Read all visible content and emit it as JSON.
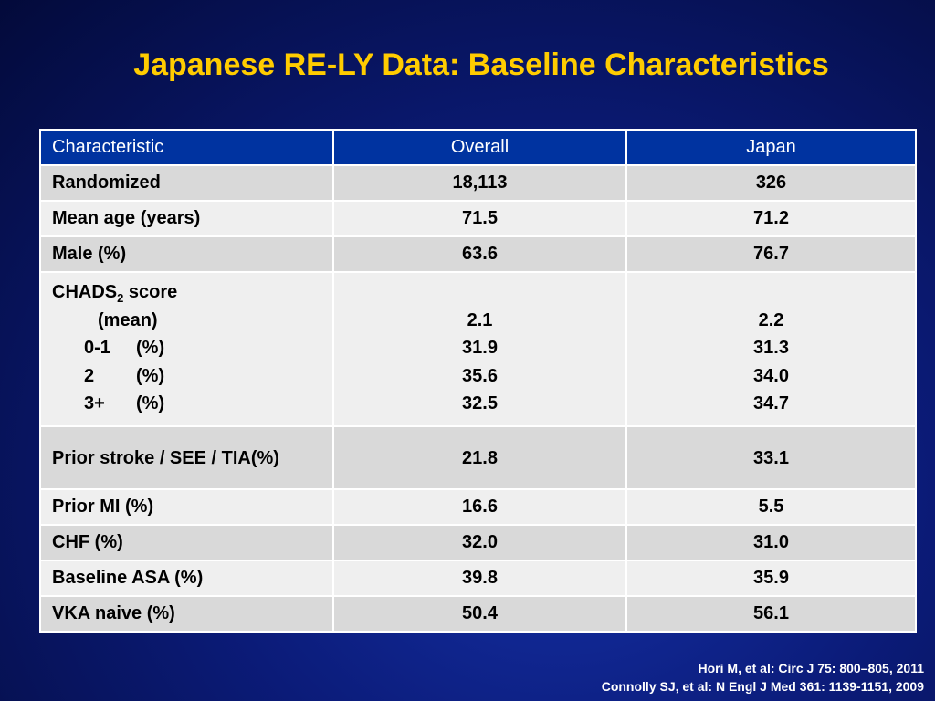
{
  "header": {
    "title": "Japanese RE-LY Data: Baseline Characteristics"
  },
  "table": {
    "columns": [
      "Characteristic",
      "Overall",
      "Japan"
    ],
    "rows": [
      [
        "Randomized",
        "18,113",
        "326"
      ],
      [
        "Mean age (years)",
        "71.5",
        "71.2"
      ],
      [
        "Male (%)",
        "63.6",
        "76.7"
      ],
      {
        "name": "CHADS",
        "sub": "2",
        "suffix": "score",
        "items": [
          {
            "label": "(mean)",
            "overall": "2.1",
            "japan": "2.2"
          },
          {
            "label": "0-1",
            "unit": "(%)",
            "overall": "31.9",
            "japan": "31.3"
          },
          {
            "label": "2",
            "unit": "(%)",
            "overall": "35.6",
            "japan": "34.0"
          },
          {
            "label": "3+",
            "unit": "(%)",
            "overall": "32.5",
            "japan": "34.7"
          }
        ]
      },
      [
        "Prior stroke / SEE / TIA(%)",
        "21.8",
        "33.1"
      ],
      [
        "Prior MI (%)",
        "16.6",
        "5.5"
      ],
      [
        "CHF (%)",
        "32.0",
        "31.0"
      ],
      [
        "Baseline ASA (%)",
        "39.8",
        "35.9"
      ],
      [
        "VKA naive (%)",
        "50.4",
        "56.1"
      ]
    ]
  },
  "footer": {
    "references": [
      "Hori M, et al: Circ J 75: 800–805, 2011",
      "Connolly SJ, et al: N Engl J Med 361: 1139-1151, 2009"
    ]
  }
}
